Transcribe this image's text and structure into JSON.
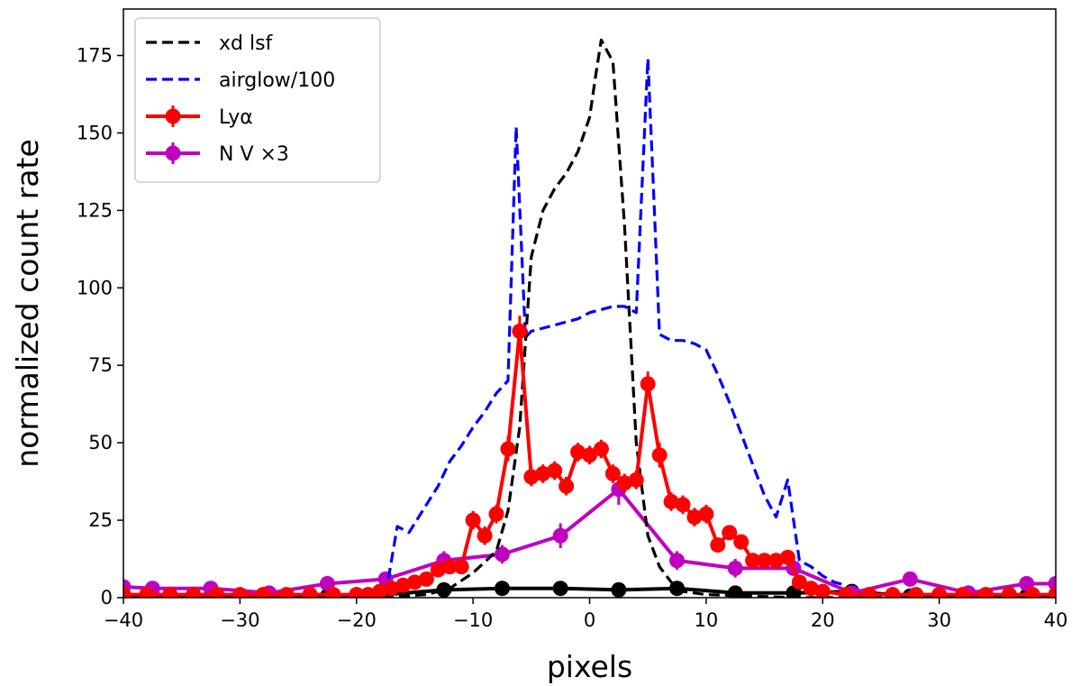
{
  "chart_data": {
    "type": "line",
    "title": "",
    "xlabel": "pixels",
    "ylabel": "normalized count rate",
    "xlim": [
      -40,
      40
    ],
    "ylim": [
      0,
      190
    ],
    "xticks": [
      -40,
      -30,
      -20,
      -10,
      0,
      10,
      20,
      30,
      40
    ],
    "xtick_labels": [
      "−40",
      "−30",
      "−20",
      "−10",
      "0",
      "10",
      "20",
      "30",
      "40"
    ],
    "yticks": [
      0,
      25,
      50,
      75,
      100,
      125,
      150,
      175
    ],
    "ytick_labels": [
      "0",
      "25",
      "50",
      "75",
      "100",
      "125",
      "150",
      "175"
    ],
    "legend_position": "top-left",
    "series": [
      {
        "name": "xd lsf",
        "legend_label": "xd lsf",
        "color": "#000000",
        "style": "dashed",
        "x": [
          -40,
          -20,
          -16,
          -14,
          -12,
          -10,
          -8,
          -7,
          -6,
          -5,
          -4,
          -3,
          -2,
          -1,
          0,
          0.5,
          1,
          2,
          3,
          4,
          5,
          6,
          7,
          8,
          10,
          14,
          18,
          20,
          40
        ],
        "y": [
          0,
          0,
          0.5,
          1,
          3,
          8,
          15,
          28,
          55,
          110,
          125,
          132,
          137,
          144,
          155,
          168,
          180,
          173,
          120,
          50,
          20,
          10,
          5,
          2,
          1,
          0.5,
          0,
          0,
          0
        ]
      },
      {
        "name": "airglow/100",
        "legend_label": "airglow/100",
        "color": "#0000ff",
        "style": "dashed",
        "x": [
          -17.5,
          -16.5,
          -15.5,
          -14.5,
          -13,
          -12,
          -11,
          -10,
          -9,
          -8,
          -7,
          -6.3,
          -5.5,
          -5,
          -4,
          -3,
          -2,
          -1,
          0,
          1,
          2,
          3,
          4,
          5,
          5.5,
          6,
          7,
          8,
          9,
          10,
          11,
          12,
          13,
          14,
          15,
          16,
          17,
          17.5,
          18,
          19,
          20,
          21,
          22
        ],
        "y": [
          1,
          23,
          21,
          27,
          36,
          44,
          49,
          55,
          60,
          66,
          70,
          152,
          84,
          86,
          87,
          88,
          89,
          90,
          92,
          93,
          94,
          94,
          92,
          174,
          130,
          85,
          83,
          83,
          82,
          80,
          72,
          63,
          53,
          43,
          33,
          26,
          38,
          25,
          12,
          10,
          7,
          5,
          4
        ]
      },
      {
        "name": "Lyα",
        "legend_label": "Lyα",
        "color": "#ff0000",
        "style": "solid-markers",
        "x": [
          -40,
          -38,
          -36,
          -34,
          -32,
          -30,
          -28,
          -26,
          -24,
          -22,
          -20,
          -19,
          -18,
          -17,
          -16,
          -15,
          -14,
          -13,
          -12,
          -11,
          -10,
          -9,
          -8,
          -7,
          -6,
          -5,
          -4,
          -3,
          -2,
          -1,
          0,
          1,
          2,
          3,
          4,
          5,
          6,
          7,
          8,
          9,
          10,
          11,
          12,
          13,
          14,
          15,
          16,
          17,
          18,
          19,
          20,
          22,
          24,
          26,
          28,
          30,
          32,
          34,
          36,
          38,
          40
        ],
        "y": [
          1,
          1,
          1,
          1,
          1,
          1,
          1,
          1,
          1,
          1,
          1,
          1,
          2,
          3,
          4,
          5,
          6,
          9,
          10,
          10,
          25,
          20,
          27,
          48,
          86,
          39,
          40,
          41,
          36,
          47,
          46,
          48,
          40,
          37,
          38,
          69,
          46,
          31,
          30,
          26,
          27,
          17,
          21,
          18,
          12,
          12,
          12,
          13,
          5,
          3,
          2,
          1,
          1,
          1,
          1,
          1,
          1,
          1,
          1,
          1,
          1
        ],
        "yerr": [
          0.5,
          0.5,
          0.5,
          0.5,
          0.5,
          0.5,
          0.5,
          0.5,
          0.5,
          0.5,
          0.5,
          0.5,
          1,
          1,
          1,
          1,
          1.5,
          1.5,
          1.5,
          2,
          3,
          3,
          3,
          4,
          5,
          3,
          3,
          3,
          3,
          3,
          3,
          3,
          3,
          3,
          3,
          4,
          4,
          3,
          3,
          3,
          3,
          2,
          2,
          2,
          2,
          2,
          2,
          2,
          1,
          1,
          1,
          0.5,
          0.5,
          0.5,
          0.5,
          0.5,
          0.5,
          0.5,
          0.5,
          0.5,
          0.5
        ]
      },
      {
        "name": "N V ×3",
        "legend_label": "N V ×3",
        "color": "#c000c0",
        "style": "solid-markers",
        "x": [
          -40,
          -37.5,
          -32.5,
          -27.5,
          -22.5,
          -17.5,
          -12.5,
          -7.5,
          -2.5,
          2.5,
          7.5,
          12.5,
          17.5,
          22.5,
          27.5,
          32.5,
          37.5,
          40
        ],
        "y": [
          3.5,
          3,
          3,
          1.5,
          4.5,
          6,
          12,
          14,
          20,
          35,
          12,
          9.5,
          9.5,
          1.5,
          6,
          1.5,
          4.5,
          4.5
        ],
        "yerr": [
          0,
          1,
          1,
          1,
          1,
          1.5,
          3,
          3,
          4,
          5,
          3,
          3,
          2,
          1,
          1,
          1,
          1,
          0
        ]
      },
      {
        "name": "black-points",
        "legend_label": "",
        "color": "#000000",
        "style": "solid-markers",
        "x": [
          -40,
          -37.5,
          -32.5,
          -27.5,
          -22.5,
          -17.5,
          -12.5,
          -7.5,
          -2.5,
          2.5,
          7.5,
          12.5,
          17.5,
          22.5,
          27.5,
          32.5,
          37.5,
          40
        ],
        "y": [
          0.5,
          0.5,
          0.5,
          0.5,
          0.5,
          1,
          2.5,
          3,
          3,
          2.5,
          3,
          1.5,
          1.5,
          2,
          0.5,
          0.5,
          0.5,
          0.5
        ],
        "yerr": [
          0,
          0.3,
          0.3,
          0.3,
          0.3,
          0.5,
          0.5,
          0.5,
          0.5,
          0.5,
          0.5,
          0.5,
          0.5,
          0.5,
          0.3,
          0.3,
          0.3,
          0
        ]
      }
    ]
  }
}
